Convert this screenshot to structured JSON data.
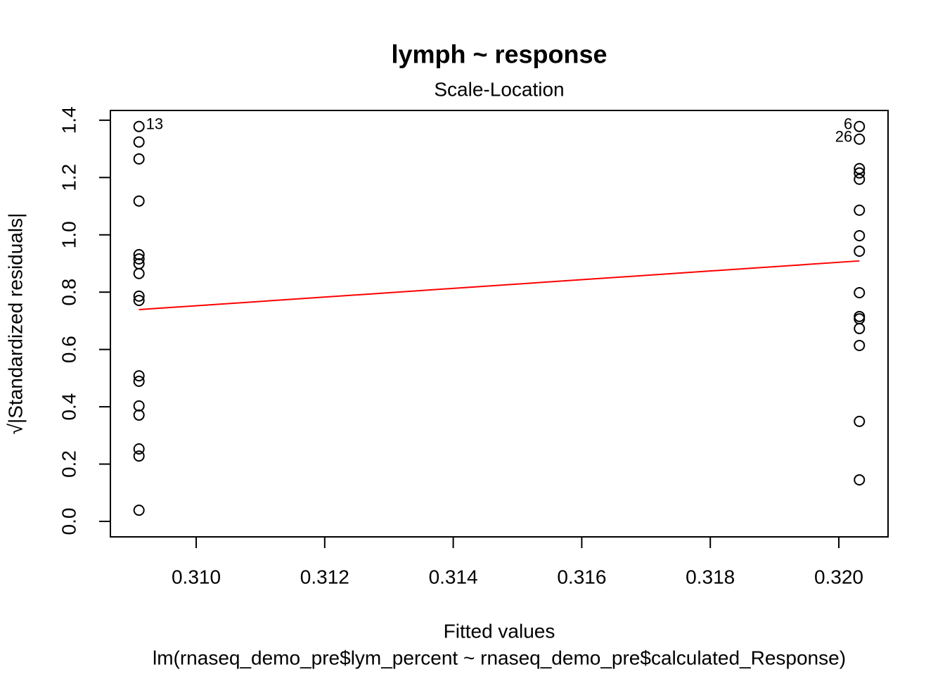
{
  "chart_data": {
    "type": "scatter",
    "title": "lymph ~ response",
    "subtitle": "Scale-Location",
    "xlabel": "Fitted values",
    "ylabel": "√|Standardized residuals|",
    "caption": "lm(rnaseq_demo_pre$lym_percent ~ rnaseq_demo_pre$calculated_Response)",
    "color": "#000000",
    "x": [
      0.30911,
      0.30911,
      0.30911,
      0.30911,
      0.30911,
      0.30911,
      0.30911,
      0.30911,
      0.30911,
      0.30911,
      0.30911,
      0.30911,
      0.30911,
      0.30911,
      0.30911,
      0.30911,
      0.30911,
      0.32032,
      0.32032,
      0.32032,
      0.32032,
      0.32032,
      0.32032,
      0.32032,
      0.32032,
      0.32032,
      0.32032,
      0.32032,
      0.32032,
      0.32032,
      0.32032,
      0.32032
    ],
    "values": [
      1.378,
      1.324,
      1.265,
      1.118,
      0.931,
      0.916,
      0.899,
      0.865,
      0.786,
      0.771,
      0.508,
      0.489,
      0.403,
      0.371,
      0.253,
      0.228,
      0.039,
      1.378,
      1.334,
      1.231,
      1.216,
      1.194,
      1.086,
      0.997,
      0.943,
      0.798,
      0.715,
      0.707,
      0.673,
      0.614,
      0.349,
      0.145
    ],
    "point_labels": [
      "13",
      null,
      null,
      null,
      null,
      null,
      null,
      null,
      null,
      null,
      null,
      null,
      null,
      null,
      null,
      null,
      null,
      "6",
      "26",
      null,
      null,
      null,
      null,
      null,
      null,
      null,
      null,
      null,
      null,
      null,
      null,
      null
    ],
    "line": {
      "x": [
        0.30911,
        0.32032
      ],
      "values": [
        0.739,
        0.909
      ],
      "color": "#ff0000"
    },
    "xlim": [
      0.308665,
      0.320766
    ],
    "ylim": [
      -0.054,
      1.434
    ],
    "xticks": [
      {
        "value": 0.31,
        "label": "0.310"
      },
      {
        "value": 0.312,
        "label": "0.312"
      },
      {
        "value": 0.314,
        "label": "0.314"
      },
      {
        "value": 0.316,
        "label": "0.316"
      },
      {
        "value": 0.318,
        "label": "0.318"
      },
      {
        "value": 0.32,
        "label": "0.320"
      }
    ],
    "yticks": [
      {
        "value": 0,
        "label": "0.0"
      },
      0.2,
      0.4,
      0.6,
      0.8,
      {
        "value": 1,
        "label": "1.0"
      },
      1.2,
      1.4
    ]
  }
}
